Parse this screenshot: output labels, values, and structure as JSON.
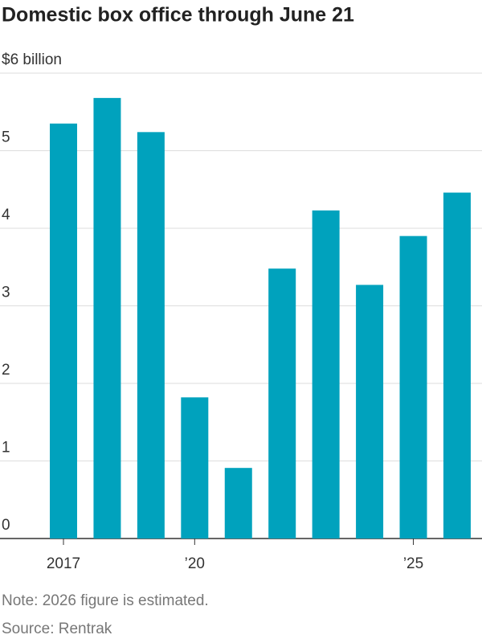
{
  "chart_data": {
    "type": "bar",
    "title": "Domestic box office through June 21",
    "categories": [
      "2017",
      null,
      null,
      "’20",
      null,
      null,
      null,
      null,
      "’25",
      null
    ],
    "values": [
      5.35,
      5.68,
      5.24,
      1.82,
      0.91,
      3.48,
      4.23,
      3.27,
      3.9,
      4.46
    ],
    "color": "#00a2bd",
    "ylim": [
      0,
      6
    ],
    "yticks": [
      0,
      1,
      2,
      3,
      4,
      5,
      {
        "value": 6,
        "label": "$6 billion"
      }
    ],
    "grid": true,
    "notes": [
      "Note: 2026 figure is estimated.",
      "Source: Rentrak"
    ]
  }
}
